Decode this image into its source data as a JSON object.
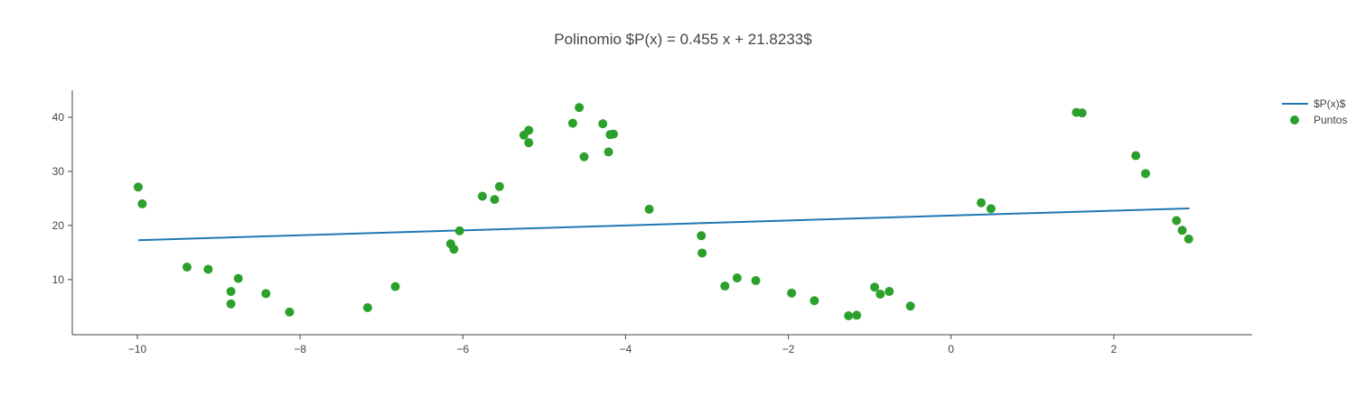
{
  "chart_data": {
    "type": "scatter",
    "title": "Polinomio $P(x) = 0.455 x + 21.8233$",
    "xlabel": "",
    "ylabel": "",
    "xlim": [
      -10.8,
      3.7
    ],
    "ylim": [
      -0.2,
      45.0
    ],
    "xticks": [
      -10,
      -8,
      -6,
      -4,
      -2,
      0,
      2
    ],
    "xtick_labels": [
      "−10",
      "−8",
      "−6",
      "−4",
      "−2",
      "0",
      "2"
    ],
    "yticks": [
      10,
      20,
      30,
      40
    ],
    "ytick_labels": [
      "10",
      "20",
      "30",
      "40"
    ],
    "grid": false,
    "legend_position": "top-right",
    "series": [
      {
        "name": "$P(x)$",
        "kind": "line",
        "color": "#1f77b4",
        "x": [
          -9.99,
          2.93
        ],
        "y": [
          17.28,
          23.16
        ]
      },
      {
        "name": "Puntos",
        "kind": "markers",
        "color": "#2ca02c",
        "x": [
          -9.99,
          -9.94,
          -9.39,
          -9.13,
          -8.85,
          -8.85,
          -8.76,
          -8.42,
          -8.13,
          -7.17,
          -6.83,
          -6.15,
          -6.11,
          -6.04,
          -5.76,
          -5.61,
          -5.55,
          -5.25,
          -5.19,
          -5.19,
          -4.65,
          -4.57,
          -4.51,
          -4.28,
          -4.21,
          -4.19,
          -4.15,
          -3.71,
          -3.07,
          -3.06,
          -2.78,
          -2.63,
          -2.4,
          -1.96,
          -1.68,
          -1.26,
          -1.16,
          -0.94,
          -0.87,
          -0.76,
          -0.5,
          0.37,
          0.49,
          1.54,
          1.61,
          2.27,
          2.39,
          2.77,
          2.84,
          2.92
        ],
        "y": [
          27.1,
          24.0,
          12.3,
          11.9,
          7.8,
          5.5,
          10.2,
          7.4,
          4.0,
          4.8,
          8.7,
          16.6,
          15.6,
          19.0,
          25.4,
          24.8,
          27.2,
          36.7,
          35.3,
          37.6,
          38.9,
          41.8,
          32.7,
          38.8,
          33.6,
          36.8,
          36.9,
          23.0,
          18.1,
          14.9,
          8.8,
          10.3,
          9.8,
          7.5,
          6.1,
          3.3,
          3.4,
          8.6,
          7.3,
          7.8,
          5.1,
          24.2,
          23.1,
          40.9,
          40.8,
          32.9,
          29.6,
          20.9,
          19.1,
          17.5
        ]
      }
    ]
  }
}
